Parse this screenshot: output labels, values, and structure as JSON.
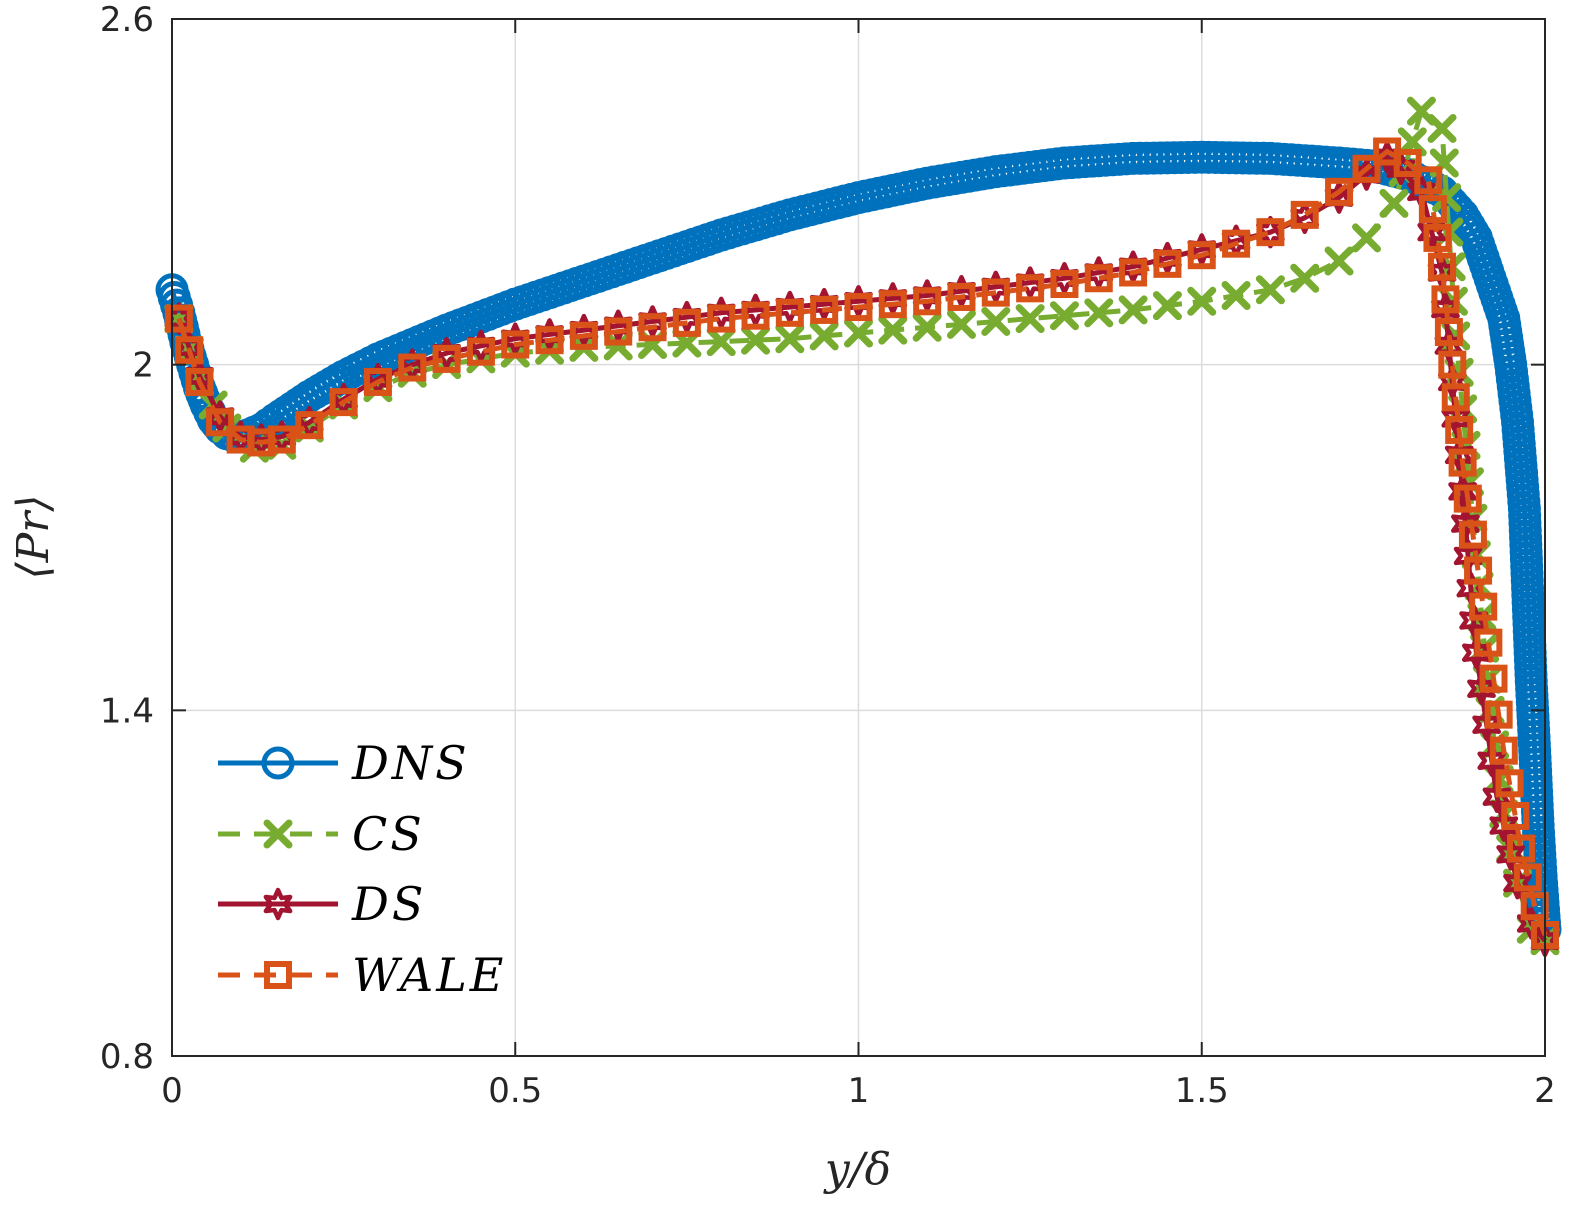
{
  "chart_data": {
    "type": "line",
    "title": "",
    "xlabel": "y/δ",
    "ylabel": "⟨Pr⟩",
    "xlim": [
      0,
      2
    ],
    "ylim": [
      0.8,
      2.6
    ],
    "xticks": [
      0,
      0.5,
      1,
      1.5,
      2
    ],
    "xtick_labels": [
      "0",
      "0.5",
      "1",
      "1.5",
      "2"
    ],
    "yticks": [
      0.8,
      1.4,
      2,
      2.6
    ],
    "ytick_labels": [
      "0.8",
      "1.4",
      "2",
      "2.6"
    ],
    "grid": true,
    "legend_position": "bottom-left",
    "series": [
      {
        "name": "DNS",
        "color": "#0072BD",
        "dash": "solid",
        "marker": "circle",
        "points": [
          [
            0,
            2.13
          ],
          [
            0.01,
            2.09
          ],
          [
            0.02,
            2.04
          ],
          [
            0.03,
            2.0
          ],
          [
            0.04,
            1.96
          ],
          [
            0.05,
            1.93
          ],
          [
            0.06,
            1.905
          ],
          [
            0.07,
            1.89
          ],
          [
            0.08,
            1.88
          ],
          [
            0.09,
            1.876
          ],
          [
            0.1,
            1.875
          ],
          [
            0.11,
            1.878
          ],
          [
            0.13,
            1.888
          ],
          [
            0.15,
            1.905
          ],
          [
            0.2,
            1.945
          ],
          [
            0.25,
            1.98
          ],
          [
            0.3,
            2.01
          ],
          [
            0.35,
            2.035
          ],
          [
            0.4,
            2.06
          ],
          [
            0.5,
            2.105
          ],
          [
            0.6,
            2.145
          ],
          [
            0.7,
            2.185
          ],
          [
            0.8,
            2.225
          ],
          [
            0.9,
            2.26
          ],
          [
            1.0,
            2.29
          ],
          [
            1.1,
            2.315
          ],
          [
            1.2,
            2.335
          ],
          [
            1.3,
            2.35
          ],
          [
            1.4,
            2.358
          ],
          [
            1.5,
            2.36
          ],
          [
            1.6,
            2.358
          ],
          [
            1.7,
            2.35
          ],
          [
            1.75,
            2.345
          ],
          [
            1.8,
            2.33
          ],
          [
            1.85,
            2.3
          ],
          [
            1.88,
            2.26
          ],
          [
            1.9,
            2.22
          ],
          [
            1.92,
            2.15
          ],
          [
            1.94,
            2.08
          ],
          [
            1.95,
            2.0
          ],
          [
            1.96,
            1.9
          ],
          [
            1.97,
            1.75
          ],
          [
            1.975,
            1.6
          ],
          [
            1.98,
            1.45
          ],
          [
            1.985,
            1.33
          ],
          [
            1.99,
            1.2
          ],
          [
            1.995,
            1.1
          ],
          [
            2.0,
            1.02
          ]
        ]
      },
      {
        "name": "CS",
        "color": "#77AC30",
        "dash": "dashed",
        "marker": "x",
        "points": [
          [
            0.01,
            2.08
          ],
          [
            0.04,
            1.97
          ],
          [
            0.08,
            1.89
          ],
          [
            0.12,
            1.855
          ],
          [
            0.16,
            1.86
          ],
          [
            0.2,
            1.89
          ],
          [
            0.25,
            1.93
          ],
          [
            0.3,
            1.96
          ],
          [
            0.35,
            1.985
          ],
          [
            0.4,
            2.0
          ],
          [
            0.5,
            2.02
          ],
          [
            0.6,
            2.03
          ],
          [
            0.7,
            2.035
          ],
          [
            0.8,
            2.04
          ],
          [
            0.9,
            2.045
          ],
          [
            1.0,
            2.055
          ],
          [
            1.1,
            2.065
          ],
          [
            1.2,
            2.075
          ],
          [
            1.3,
            2.085
          ],
          [
            1.4,
            2.095
          ],
          [
            1.5,
            2.11
          ],
          [
            1.6,
            2.13
          ],
          [
            1.65,
            2.15
          ],
          [
            1.7,
            2.18
          ],
          [
            1.74,
            2.22
          ],
          [
            1.78,
            2.28
          ],
          [
            1.82,
            2.44
          ],
          [
            1.85,
            2.41
          ],
          [
            1.87,
            2.05
          ],
          [
            1.9,
            1.67
          ],
          [
            1.92,
            1.4
          ],
          [
            1.94,
            1.22
          ],
          [
            1.96,
            1.1
          ],
          [
            1.98,
            1.02
          ],
          [
            2.0,
            1.0
          ]
        ]
      },
      {
        "name": "DS",
        "color": "#A2142F",
        "dash": "solid",
        "marker": "hexagram",
        "points": [
          [
            0.01,
            2.08
          ],
          [
            0.04,
            1.98
          ],
          [
            0.07,
            1.91
          ],
          [
            0.1,
            1.875
          ],
          [
            0.13,
            1.87
          ],
          [
            0.16,
            1.875
          ],
          [
            0.2,
            1.9
          ],
          [
            0.25,
            1.94
          ],
          [
            0.3,
            1.975
          ],
          [
            0.35,
            2.0
          ],
          [
            0.4,
            2.02
          ],
          [
            0.5,
            2.045
          ],
          [
            0.6,
            2.06
          ],
          [
            0.7,
            2.075
          ],
          [
            0.8,
            2.09
          ],
          [
            0.9,
            2.1
          ],
          [
            1.0,
            2.11
          ],
          [
            1.1,
            2.12
          ],
          [
            1.2,
            2.135
          ],
          [
            1.3,
            2.15
          ],
          [
            1.4,
            2.17
          ],
          [
            1.5,
            2.2
          ],
          [
            1.6,
            2.23
          ],
          [
            1.65,
            2.255
          ],
          [
            1.7,
            2.29
          ],
          [
            1.74,
            2.33
          ],
          [
            1.77,
            2.36
          ],
          [
            1.79,
            2.34
          ],
          [
            1.82,
            2.3
          ],
          [
            1.85,
            2.16
          ],
          [
            1.88,
            1.78
          ],
          [
            1.9,
            1.5
          ],
          [
            1.93,
            1.25
          ],
          [
            1.96,
            1.1
          ],
          [
            1.98,
            1.03
          ],
          [
            2.0,
            1.0
          ]
        ]
      },
      {
        "name": "WALE",
        "color": "#D95319",
        "dash": "dashed",
        "marker": "square",
        "points": [
          [
            0.01,
            2.08
          ],
          [
            0.04,
            1.97
          ],
          [
            0.07,
            1.9
          ],
          [
            0.1,
            1.87
          ],
          [
            0.13,
            1.865
          ],
          [
            0.16,
            1.87
          ],
          [
            0.2,
            1.895
          ],
          [
            0.25,
            1.935
          ],
          [
            0.3,
            1.97
          ],
          [
            0.35,
            1.995
          ],
          [
            0.4,
            2.01
          ],
          [
            0.5,
            2.035
          ],
          [
            0.6,
            2.05
          ],
          [
            0.7,
            2.065
          ],
          [
            0.8,
            2.08
          ],
          [
            0.9,
            2.09
          ],
          [
            1.0,
            2.1
          ],
          [
            1.1,
            2.11
          ],
          [
            1.2,
            2.125
          ],
          [
            1.3,
            2.14
          ],
          [
            1.4,
            2.16
          ],
          [
            1.5,
            2.19
          ],
          [
            1.6,
            2.23
          ],
          [
            1.65,
            2.26
          ],
          [
            1.7,
            2.3
          ],
          [
            1.74,
            2.34
          ],
          [
            1.77,
            2.37
          ],
          [
            1.8,
            2.35
          ],
          [
            1.83,
            2.32
          ],
          [
            1.85,
            2.17
          ],
          [
            1.88,
            1.83
          ],
          [
            1.91,
            1.58
          ],
          [
            1.94,
            1.33
          ],
          [
            1.965,
            1.16
          ],
          [
            1.985,
            1.06
          ],
          [
            2.0,
            1.01
          ]
        ]
      }
    ]
  },
  "legend": {
    "items": [
      {
        "label": "DNS"
      },
      {
        "label": "CS"
      },
      {
        "label": "DS"
      },
      {
        "label": "WALE"
      }
    ]
  }
}
